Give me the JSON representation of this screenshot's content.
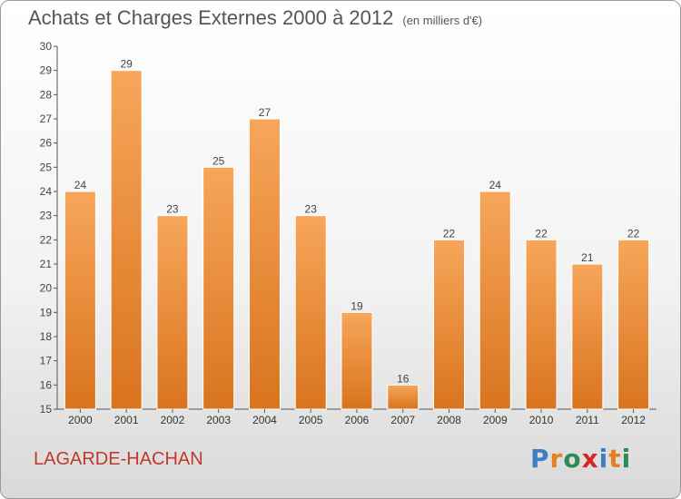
{
  "title": "Achats et Charges Externes 2000 à 2012",
  "subtitle": "(en milliers d'€)",
  "commune": "LAGARDE-HACHAN",
  "brand": {
    "text": "Proxiti",
    "letter_colors": [
      "#3b7fc4",
      "#e67e22",
      "#2e8b57",
      "#d62728",
      "#3b7fc4",
      "#e67e22",
      "#2e8b57"
    ]
  },
  "colors": {
    "bar_light": "#f7a65a",
    "bar_dark": "#d9741e",
    "axis": "#555555",
    "commune": "#c0392b"
  },
  "chart_data": {
    "type": "bar",
    "title": "Achats et Charges Externes 2000 à 2012",
    "subtitle": "(en milliers d'€)",
    "categories": [
      "2000",
      "2001",
      "2002",
      "2003",
      "2004",
      "2005",
      "2006",
      "2007",
      "2008",
      "2009",
      "2010",
      "2011",
      "2012"
    ],
    "values": [
      24,
      29,
      23,
      25,
      27,
      23,
      19,
      16,
      22,
      24,
      22,
      21,
      22
    ],
    "ylim": [
      15,
      30
    ],
    "yticks": [
      15,
      16,
      17,
      18,
      19,
      20,
      21,
      22,
      23,
      24,
      25,
      26,
      27,
      28,
      29,
      30
    ],
    "grid": false,
    "data_labels": true
  }
}
